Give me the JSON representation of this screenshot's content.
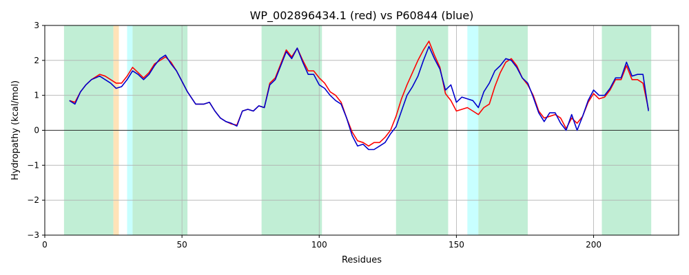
{
  "chart_data": {
    "type": "line",
    "title": "WP_002896434.1 (red) vs P60844 (blue)",
    "xlabel": "Residues",
    "ylabel": "Hydropathy (kcal/mol)",
    "xlim": [
      0,
      231
    ],
    "ylim": [
      -3,
      3
    ],
    "xticks": [
      0,
      50,
      100,
      150,
      200
    ],
    "yticks": [
      -3,
      -2,
      -1,
      0,
      1,
      2,
      3
    ],
    "grid": true,
    "zero_line": true,
    "colors": {
      "red": "#ff0000",
      "blue": "#0000cc",
      "helix": "#c1eed5",
      "orange": "#ffe3b8",
      "cyan": "#c8ffff"
    },
    "regions": [
      {
        "x0": 7,
        "x1": 25,
        "kind": "helix"
      },
      {
        "x0": 25,
        "x1": 27,
        "kind": "orange"
      },
      {
        "x0": 30,
        "x1": 32,
        "kind": "cyan"
      },
      {
        "x0": 32,
        "x1": 52,
        "kind": "helix"
      },
      {
        "x0": 79,
        "x1": 101,
        "kind": "helix"
      },
      {
        "x0": 128,
        "x1": 147,
        "kind": "helix"
      },
      {
        "x0": 154,
        "x1": 158,
        "kind": "cyan"
      },
      {
        "x0": 158,
        "x1": 176,
        "kind": "helix"
      },
      {
        "x0": 203,
        "x1": 221,
        "kind": "helix"
      }
    ],
    "series": [
      {
        "color": "red",
        "x": [
          9,
          11,
          13,
          15,
          17,
          20,
          22,
          24,
          26,
          28,
          30,
          32,
          34,
          36,
          38,
          40,
          42,
          44,
          46,
          48,
          50,
          52,
          55,
          58,
          60,
          62,
          64,
          66,
          68,
          70,
          72,
          74,
          76,
          78,
          80,
          82,
          84,
          86,
          88,
          90,
          92,
          94,
          96,
          98,
          100,
          102,
          104,
          106,
          108,
          110,
          112,
          114,
          116,
          118,
          120,
          122,
          124,
          126,
          128,
          130,
          132,
          134,
          136,
          138,
          140,
          142,
          144,
          146,
          148,
          150,
          152,
          154,
          156,
          158,
          160,
          162,
          164,
          166,
          168,
          170,
          172,
          174,
          176,
          178,
          180,
          182,
          184,
          186,
          188,
          190,
          192,
          194,
          196,
          198,
          200,
          202,
          204,
          206,
          208,
          210,
          212,
          214,
          216,
          218,
          220
        ],
        "y": [
          0.85,
          0.8,
          1.1,
          1.3,
          1.45,
          1.6,
          1.55,
          1.45,
          1.35,
          1.35,
          1.55,
          1.8,
          1.65,
          1.5,
          1.65,
          1.9,
          2.0,
          2.1,
          1.95,
          1.7,
          1.4,
          1.1,
          0.75,
          0.75,
          0.8,
          0.55,
          0.35,
          0.25,
          0.18,
          0.15,
          0.55,
          0.6,
          0.55,
          0.7,
          0.65,
          1.35,
          1.5,
          1.9,
          2.3,
          2.1,
          2.35,
          2.0,
          1.7,
          1.7,
          1.5,
          1.35,
          1.1,
          1.0,
          0.8,
          0.35,
          -0.05,
          -0.3,
          -0.35,
          -0.45,
          -0.35,
          -0.35,
          -0.2,
          0.0,
          0.4,
          0.9,
          1.3,
          1.65,
          2.0,
          2.3,
          2.55,
          2.15,
          1.8,
          1.05,
          0.85,
          0.55,
          0.6,
          0.65,
          0.55,
          0.45,
          0.65,
          0.75,
          1.25,
          1.65,
          1.95,
          2.05,
          1.85,
          1.5,
          1.3,
          1.0,
          0.55,
          0.35,
          0.4,
          0.45,
          0.35,
          0.05,
          0.35,
          0.2,
          0.4,
          0.8,
          1.05,
          0.9,
          0.95,
          1.15,
          1.45,
          1.45,
          1.85,
          1.45,
          1.45,
          1.35,
          0.6
        ]
      },
      {
        "color": "blue",
        "x": [
          9,
          11,
          13,
          15,
          17,
          20,
          22,
          24,
          26,
          28,
          30,
          32,
          34,
          36,
          38,
          40,
          42,
          44,
          46,
          48,
          50,
          52,
          55,
          58,
          60,
          62,
          64,
          66,
          68,
          70,
          72,
          74,
          76,
          78,
          80,
          82,
          84,
          86,
          88,
          90,
          92,
          94,
          96,
          98,
          100,
          102,
          104,
          106,
          108,
          110,
          112,
          114,
          116,
          118,
          120,
          122,
          124,
          126,
          128,
          130,
          132,
          134,
          136,
          138,
          140,
          142,
          144,
          146,
          148,
          150,
          152,
          154,
          156,
          158,
          160,
          162,
          164,
          166,
          168,
          170,
          172,
          174,
          176,
          178,
          180,
          182,
          184,
          186,
          188,
          190,
          192,
          194,
          196,
          198,
          200,
          202,
          204,
          206,
          208,
          210,
          212,
          214,
          216,
          218,
          220
        ],
        "y": [
          0.85,
          0.75,
          1.1,
          1.3,
          1.45,
          1.55,
          1.45,
          1.35,
          1.2,
          1.25,
          1.45,
          1.7,
          1.6,
          1.45,
          1.6,
          1.85,
          2.05,
          2.15,
          1.9,
          1.7,
          1.4,
          1.1,
          0.75,
          0.75,
          0.8,
          0.55,
          0.35,
          0.25,
          0.2,
          0.12,
          0.55,
          0.6,
          0.55,
          0.7,
          0.65,
          1.3,
          1.45,
          1.85,
          2.25,
          2.05,
          2.35,
          1.95,
          1.6,
          1.6,
          1.3,
          1.2,
          1.0,
          0.85,
          0.75,
          0.35,
          -0.15,
          -0.45,
          -0.4,
          -0.55,
          -0.55,
          -0.45,
          -0.35,
          -0.1,
          0.1,
          0.55,
          1.0,
          1.25,
          1.55,
          2.0,
          2.4,
          2.05,
          1.75,
          1.15,
          1.3,
          0.8,
          0.95,
          0.9,
          0.85,
          0.65,
          1.1,
          1.35,
          1.7,
          1.85,
          2.05,
          2.0,
          1.8,
          1.5,
          1.35,
          0.95,
          0.5,
          0.25,
          0.5,
          0.5,
          0.2,
          0.0,
          0.45,
          0.0,
          0.4,
          0.85,
          1.15,
          1.0,
          1.0,
          1.2,
          1.5,
          1.5,
          1.95,
          1.55,
          1.6,
          1.6,
          0.55
        ]
      }
    ]
  }
}
